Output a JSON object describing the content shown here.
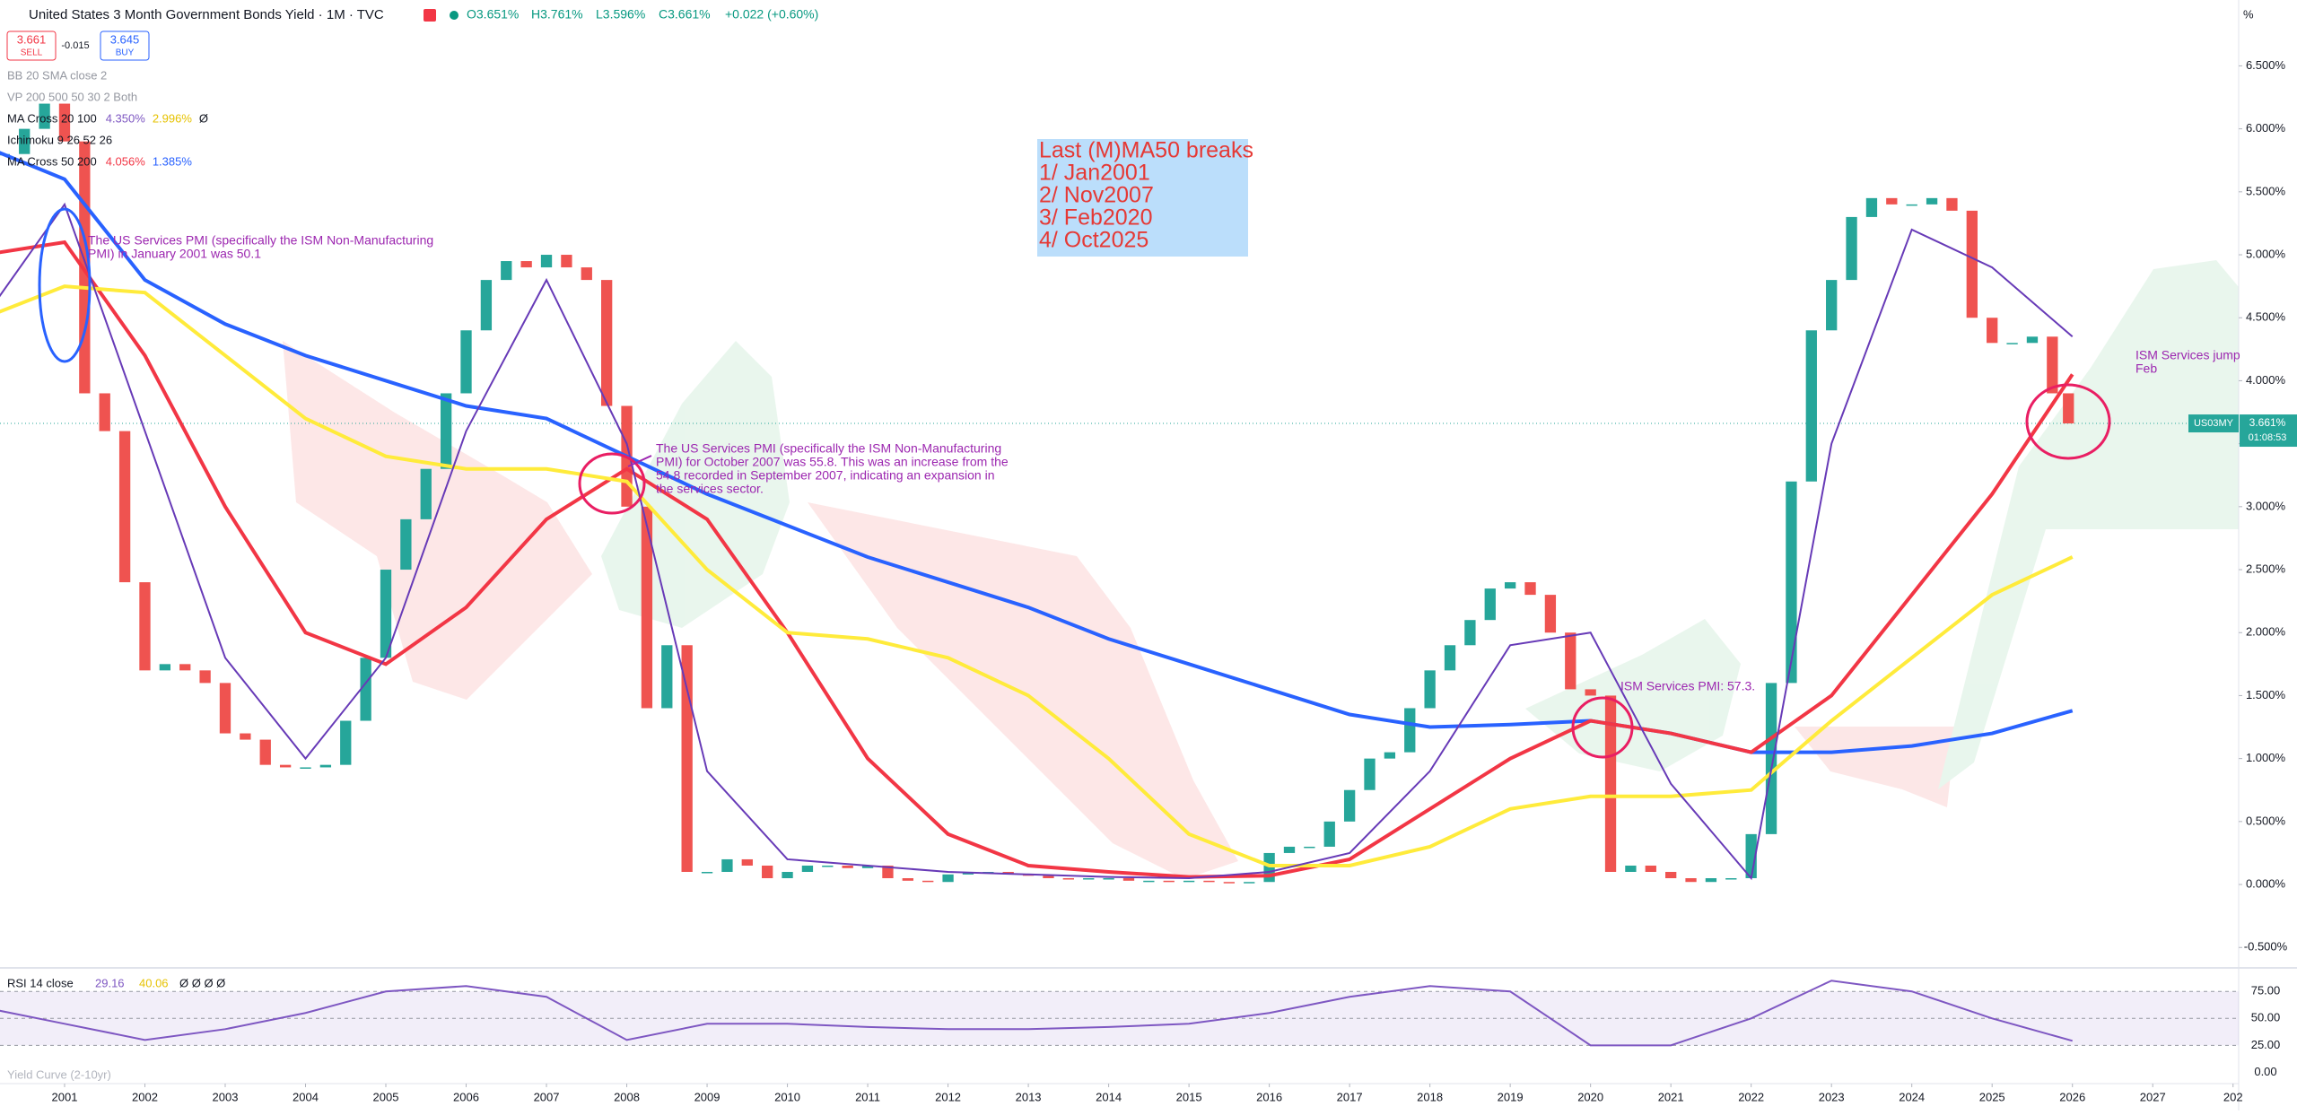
{
  "header": {
    "title": "United States 3 Month Government Bonds Yield · 1M · TVC",
    "open": "O3.651%",
    "high": "H3.761%",
    "low": "L3.596%",
    "close": "C3.661%",
    "change": "+0.022 (+0.60%)",
    "unit": "%"
  },
  "trade": {
    "sell_price": "3.661",
    "sell": "SELL",
    "spread": "-0.015",
    "buy_price": "3.645",
    "buy": "BUY"
  },
  "indicators": [
    {
      "label": "BB 20 SMA close 2"
    },
    {
      "label": "VP 200 500 50 30 2 Both"
    },
    {
      "label": "MA Cross 20 100",
      "values": [
        "4.350%",
        "2.996%",
        "Ø"
      ]
    },
    {
      "label": "Ichimoku 9 26 52 26"
    },
    {
      "label": "MA Cross 50 200",
      "values": [
        "4.056%",
        "1.385%"
      ]
    }
  ],
  "chart_data": {
    "type": "candlestick",
    "up_color": "#26a69a",
    "down_color": "#ef5350",
    "x": [
      2000.25,
      2000.5,
      2000.75,
      2001,
      2001.25,
      2001.5,
      2001.75,
      2002,
      2002.25,
      2002.5,
      2002.75,
      2003,
      2003.25,
      2003.5,
      2003.75,
      2004,
      2004.25,
      2004.5,
      2004.75,
      2005,
      2005.25,
      2005.5,
      2005.75,
      2006,
      2006.25,
      2006.5,
      2006.75,
      2007,
      2007.25,
      2007.5,
      2007.75,
      2008,
      2008.25,
      2008.5,
      2008.75,
      2009,
      2009.25,
      2009.5,
      2009.75,
      2010,
      2010.25,
      2010.5,
      2010.75,
      2011,
      2011.25,
      2011.5,
      2011.75,
      2012,
      2012.25,
      2012.5,
      2012.75,
      2013,
      2013.25,
      2013.5,
      2013.75,
      2014,
      2014.25,
      2014.5,
      2014.75,
      2015,
      2015.25,
      2015.5,
      2015.75,
      2016,
      2016.25,
      2016.5,
      2016.75,
      2017,
      2017.25,
      2017.5,
      2017.75,
      2018,
      2018.25,
      2018.5,
      2018.75,
      2019,
      2019.25,
      2019.5,
      2019.75,
      2020,
      2020.25,
      2020.5,
      2020.75,
      2021,
      2021.25,
      2021.5,
      2021.75,
      2022,
      2022.25,
      2022.5,
      2022.75,
      2023,
      2023.25,
      2023.5,
      2023.75,
      2024,
      2024.25,
      2024.5,
      2024.75,
      2025,
      2025.25,
      2025.5,
      2025.75,
      2025.95
    ],
    "values": [
      5.8,
      6.0,
      6.2,
      5.9,
      3.9,
      3.6,
      2.4,
      1.7,
      1.75,
      1.7,
      1.6,
      1.2,
      1.15,
      0.95,
      0.93,
      0.93,
      0.95,
      1.3,
      1.8,
      2.5,
      2.9,
      3.3,
      3.9,
      4.4,
      4.8,
      4.95,
      4.9,
      5.0,
      4.9,
      4.8,
      3.8,
      3.0,
      1.4,
      1.9,
      0.1,
      0.1,
      0.2,
      0.15,
      0.05,
      0.1,
      0.15,
      0.15,
      0.13,
      0.15,
      0.05,
      0.03,
      0.02,
      0.08,
      0.09,
      0.1,
      0.08,
      0.07,
      0.05,
      0.04,
      0.05,
      0.05,
      0.03,
      0.03,
      0.02,
      0.03,
      0.02,
      0.01,
      0.02,
      0.25,
      0.3,
      0.3,
      0.5,
      0.75,
      1.0,
      1.05,
      1.4,
      1.7,
      1.9,
      2.1,
      2.35,
      2.4,
      2.3,
      2.0,
      1.55,
      1.5,
      0.1,
      0.15,
      0.1,
      0.05,
      0.02,
      0.05,
      0.05,
      0.4,
      1.6,
      3.2,
      4.4,
      4.8,
      5.3,
      5.45,
      5.4,
      5.4,
      5.45,
      5.35,
      4.5,
      4.3,
      4.3,
      4.35,
      3.9,
      3.661
    ],
    "xlim": [
      2000.196,
      2028.07
    ],
    "ylim": [
      -0.655,
      7.023
    ],
    "xticks": [
      2001,
      2002,
      2003,
      2004,
      2005,
      2006,
      2007,
      2008,
      2009,
      2010,
      2011,
      2012,
      2013,
      2014,
      2015,
      2016,
      2017,
      2018,
      2019,
      2020,
      2021,
      2022,
      2023,
      2024,
      2025,
      2026,
      2027,
      {
        "value": 2028,
        "label": "202"
      }
    ],
    "yticks": [
      {
        "value": 6.5,
        "label": "6.500%"
      },
      {
        "value": 6.0,
        "label": "6.000%"
      },
      {
        "value": 5.5,
        "label": "5.500%"
      },
      {
        "value": 5.0,
        "label": "5.000%"
      },
      {
        "value": 4.5,
        "label": "4.500%"
      },
      {
        "value": 4.0,
        "label": "4.000%"
      },
      {
        "value": 3.5,
        "label": "3.500%"
      },
      {
        "value": 3.0,
        "label": "3.000%"
      },
      {
        "value": 2.5,
        "label": "2.500%"
      },
      {
        "value": 2.0,
        "label": "2.000%"
      },
      {
        "value": 1.5,
        "label": "1.500%"
      },
      {
        "value": 1.0,
        "label": "1.000%"
      },
      {
        "value": 0.5,
        "label": "0.500%"
      },
      {
        "value": 0,
        "label": "0.000%"
      },
      {
        "value": -0.5,
        "label": "-0.500%"
      }
    ],
    "line_x": [
      2000,
      2001,
      2002,
      2003,
      2004,
      2005,
      2006,
      2007,
      2008,
      2009,
      2010,
      2011,
      2012,
      2013,
      2014,
      2015,
      2016,
      2017,
      2018,
      2019,
      2020,
      2021,
      2022,
      2023,
      2024,
      2025,
      2026
    ],
    "lines": [
      {
        "color": "#2962ff",
        "values": [
          5.86,
          5.6,
          4.8,
          4.45,
          4.2,
          4.0,
          3.8,
          3.7,
          3.4,
          3.1,
          2.85,
          2.6,
          2.4,
          2.2,
          1.95,
          1.75,
          1.55,
          1.35,
          1.25,
          1.27,
          1.3,
          1.2,
          1.05,
          1.05,
          1.1,
          1.2,
          1.38
        ]
      },
      {
        "color": "#f23645",
        "values": [
          5.0,
          5.1,
          4.2,
          3.0,
          2.0,
          1.75,
          2.2,
          2.9,
          3.3,
          2.9,
          2.0,
          1.0,
          0.4,
          0.15,
          0.1,
          0.06,
          0.07,
          0.2,
          0.6,
          1.0,
          1.3,
          1.2,
          1.05,
          1.5,
          2.3,
          3.1,
          4.05
        ]
      },
      {
        "color": "#ffeb3b",
        "values": [
          4.5,
          4.75,
          4.7,
          4.2,
          3.7,
          3.4,
          3.3,
          3.3,
          3.2,
          2.5,
          2.0,
          1.95,
          1.8,
          1.5,
          1.0,
          0.4,
          0.15,
          0.15,
          0.3,
          0.6,
          0.7,
          0.7,
          0.75,
          1.3,
          1.8,
          2.3,
          2.6
        ]
      },
      {
        "color": "#673ab7",
        "values": [
          4.5,
          5.4,
          3.6,
          1.8,
          1.0,
          1.8,
          3.6,
          4.8,
          3.5,
          0.9,
          0.2,
          0.15,
          0.1,
          0.08,
          0.06,
          0.05,
          0.1,
          0.25,
          0.9,
          1.9,
          2.0,
          0.8,
          0.05,
          3.5,
          5.2,
          4.9,
          4.35
        ]
      }
    ]
  },
  "price_tag": {
    "symbol": "US03MY",
    "value": "3.661%",
    "countdown": "01:08:53",
    "level": 3.661
  },
  "breaks_box": {
    "lines": [
      "Last (M)MA50 breaks",
      "1/ Jan2001",
      "2/ Nov2007",
      "3/ Feb2020",
      "4/ Oct2025"
    ]
  },
  "notes": [
    {
      "lines": [
        "The US Services PMI (specifically the ISM Non-Manufacturing",
        "PMI) in January 2001 was 50.1"
      ]
    },
    {
      "lines": [
        "The US Services PMI (specifically the ISM Non-Manufacturing",
        "PMI) for October 2007 was 55.8. This was an increase from the",
        "54.8 recorded in September 2007, indicating an expansion in",
        "the services sector."
      ]
    },
    {
      "lines": [
        "ISM Services PMI: 57.3."
      ]
    },
    {
      "lines": [
        "ISM Services jump",
        "Feb"
      ]
    }
  ],
  "rsi": {
    "label": "RSI 14 close",
    "value": "29.16",
    "signal": "40.06",
    "extras": "Ø Ø Ø Ø",
    "ylim": [
      -10.5,
      96
    ],
    "yticks": [
      {
        "value": 75,
        "label": "75.00"
      },
      {
        "value": 50,
        "label": "50.00"
      },
      {
        "value": 25,
        "label": "25.00"
      },
      {
        "value": 0,
        "label": "0.00"
      }
    ],
    "color": "#7e57c2",
    "values": [
      60,
      45,
      30,
      40,
      55,
      75,
      80,
      70,
      30,
      45,
      45,
      42,
      40,
      40,
      42,
      45,
      55,
      70,
      80,
      75,
      25,
      25,
      50,
      85,
      75,
      50,
      29.16
    ]
  },
  "footer": {
    "yield_curve": "Yield Curve (2-10yr)"
  }
}
